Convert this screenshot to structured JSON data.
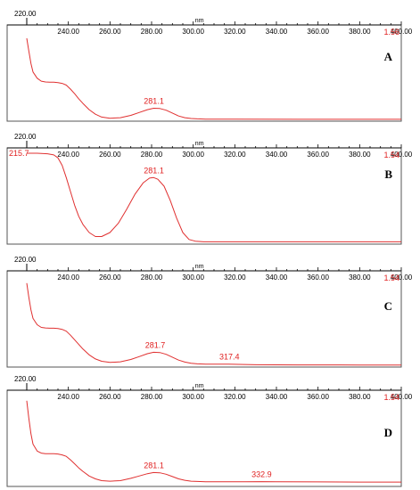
{
  "chart_data": [
    {
      "type": "line",
      "panel": "A",
      "xlabel": "nm",
      "xlim": [
        220,
        400
      ],
      "x_ticks": [
        "220.00",
        "240.00",
        "260.00",
        "280.00",
        "300.00",
        "320.00",
        "340.00",
        "360.00",
        "380.00",
        "400.00"
      ],
      "y_max_label": "1.56",
      "ylim": [
        0,
        1.56
      ],
      "peak_labels": [
        {
          "x": 281.1,
          "text": "281.1"
        }
      ],
      "series": [
        {
          "color": "#e03030",
          "x": [
            220,
            221,
            222,
            223,
            225,
            227,
            229,
            231,
            233,
            235,
            237,
            239,
            241,
            243,
            245,
            247,
            250,
            253,
            256,
            260,
            265,
            270,
            274,
            278,
            281,
            284,
            287,
            290,
            293,
            296,
            299,
            302,
            306,
            320,
            350,
            380,
            400
          ],
          "y": [
            1.42,
            1.2,
            0.98,
            0.83,
            0.72,
            0.67,
            0.655,
            0.65,
            0.65,
            0.645,
            0.63,
            0.6,
            0.53,
            0.45,
            0.36,
            0.28,
            0.17,
            0.09,
            0.04,
            0.02,
            0.03,
            0.07,
            0.12,
            0.17,
            0.195,
            0.19,
            0.16,
            0.11,
            0.06,
            0.03,
            0.015,
            0.01,
            0.005,
            0.003,
            0.002,
            0.002,
            0.002
          ]
        }
      ]
    },
    {
      "type": "line",
      "panel": "B",
      "xlabel": "nm",
      "xlim": [
        220,
        400
      ],
      "x_ticks": [
        "220.00",
        "240.00",
        "260.00",
        "280.00",
        "300.00",
        "320.00",
        "340.00",
        "360.00",
        "380.00",
        "400.00"
      ],
      "y_max_label": "1.54",
      "ylim": [
        0,
        1.54
      ],
      "left_value_label": "215.7",
      "peak_labels": [
        {
          "x": 281.1,
          "text": "281.1"
        }
      ],
      "series": [
        {
          "color": "#e03030",
          "x": [
            220,
            225,
            230,
            233,
            235,
            237,
            239,
            241,
            243,
            245,
            247,
            250,
            253,
            256,
            260,
            264,
            268,
            272,
            276,
            279,
            281,
            283,
            286,
            289,
            292,
            295,
            298,
            301,
            305,
            320,
            350,
            380,
            400
          ],
          "y": [
            1.54,
            1.54,
            1.53,
            1.51,
            1.46,
            1.33,
            1.12,
            0.88,
            0.64,
            0.45,
            0.31,
            0.17,
            0.1,
            0.1,
            0.17,
            0.33,
            0.57,
            0.83,
            1.03,
            1.11,
            1.12,
            1.09,
            0.97,
            0.72,
            0.42,
            0.17,
            0.05,
            0.02,
            0.01,
            0.01,
            0.01,
            0.01,
            0.01
          ]
        }
      ]
    },
    {
      "type": "line",
      "panel": "C",
      "xlabel": "nm",
      "xlim": [
        220,
        400
      ],
      "x_ticks": [
        "220.00",
        "240.00",
        "260.00",
        "280.00",
        "300.00",
        "320.00",
        "340.00",
        "360.00",
        "380.00",
        "400.00"
      ],
      "y_max_label": "1.54",
      "ylim": [
        0,
        1.54
      ],
      "peak_labels": [
        {
          "x": 281.7,
          "text": "281.7"
        },
        {
          "x": 317.4,
          "text": "317.4"
        }
      ],
      "series": [
        {
          "color": "#e03030",
          "x": [
            220,
            221,
            222,
            223,
            225,
            227,
            229,
            231,
            233,
            235,
            237,
            239,
            241,
            243,
            245,
            247,
            250,
            253,
            256,
            260,
            265,
            270,
            274,
            278,
            281,
            284,
            287,
            290,
            293,
            296,
            299,
            302,
            306,
            312,
            317,
            322,
            330,
            350,
            380,
            400
          ],
          "y": [
            1.42,
            1.18,
            0.96,
            0.81,
            0.7,
            0.655,
            0.645,
            0.64,
            0.64,
            0.635,
            0.62,
            0.59,
            0.52,
            0.44,
            0.36,
            0.28,
            0.18,
            0.11,
            0.07,
            0.05,
            0.06,
            0.1,
            0.15,
            0.2,
            0.225,
            0.22,
            0.19,
            0.14,
            0.09,
            0.055,
            0.035,
            0.025,
            0.02,
            0.018,
            0.02,
            0.015,
            0.01,
            0.006,
            0.004,
            0.004
          ]
        }
      ]
    },
    {
      "type": "line",
      "panel": "D",
      "xlabel": "nm",
      "xlim": [
        220,
        400
      ],
      "x_ticks": [
        "220.00",
        "240.00",
        "260.00",
        "280.00",
        "300.00",
        "320.00",
        "340.00",
        "360.00",
        "380.00",
        "400.00"
      ],
      "y_max_label": "1.54",
      "ylim": [
        0,
        1.54
      ],
      "peak_labels": [
        {
          "x": 281.1,
          "text": "281.1"
        },
        {
          "x": 332.9,
          "text": "332.9"
        }
      ],
      "series": [
        {
          "color": "#e03030",
          "x": [
            220,
            221,
            222,
            223,
            225,
            227,
            229,
            231,
            233,
            235,
            237,
            239,
            241,
            243,
            245,
            247,
            250,
            253,
            256,
            260,
            265,
            270,
            274,
            278,
            281,
            284,
            287,
            290,
            293,
            296,
            299,
            302,
            306,
            315,
            325,
            333,
            340,
            360,
            380,
            400
          ],
          "y": [
            1.45,
            1.15,
            0.88,
            0.7,
            0.58,
            0.545,
            0.535,
            0.535,
            0.535,
            0.53,
            0.515,
            0.49,
            0.43,
            0.36,
            0.29,
            0.23,
            0.15,
            0.1,
            0.07,
            0.06,
            0.07,
            0.11,
            0.15,
            0.19,
            0.21,
            0.205,
            0.18,
            0.14,
            0.1,
            0.075,
            0.06,
            0.055,
            0.05,
            0.05,
            0.05,
            0.052,
            0.05,
            0.048,
            0.045,
            0.045
          ]
        }
      ]
    }
  ]
}
